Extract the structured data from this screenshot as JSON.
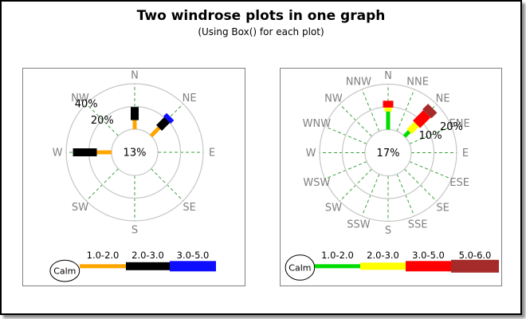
{
  "header": {
    "title": "Two windrose plots in one graph",
    "subtitle": "(Using Box() for each plot)"
  },
  "chart_data": [
    {
      "type": "windrose",
      "center_label": "13%",
      "calm_pct": 13,
      "max_pct": 40,
      "ring_labels": [
        {
          "text": "20%",
          "pct": 20,
          "angle": 315
        },
        {
          "text": "40%",
          "pct": 40,
          "angle": 315
        }
      ],
      "directions": [
        "N",
        "NE",
        "E",
        "SE",
        "S",
        "SW",
        "W",
        "NW"
      ],
      "bins": [
        {
          "label": "1.0-2.0",
          "color": "#FFA500"
        },
        {
          "label": "2.0-3.0",
          "color": "#000000"
        },
        {
          "label": "3.0-5.0",
          "color": "#0D0DFF"
        }
      ],
      "bars": [
        {
          "dir": "N",
          "segments_pct": [
            8,
            11.5,
            0
          ]
        },
        {
          "dir": "NE",
          "segments_pct": [
            10,
            10,
            4
          ]
        },
        {
          "dir": "W",
          "segments_pct": [
            13,
            21,
            0
          ]
        }
      ],
      "calm_label": "Calm"
    },
    {
      "type": "windrose",
      "center_label": "17%",
      "calm_pct": 17,
      "max_pct": 20,
      "ring_labels": [
        {
          "text": "10%",
          "pct": 10,
          "angle": 67.5
        },
        {
          "text": "20%",
          "pct": 20,
          "angle": 67.5
        }
      ],
      "directions": [
        "N",
        "NNE",
        "NE",
        "ENE",
        "E",
        "ESE",
        "SE",
        "SSE",
        "S",
        "SSW",
        "SW",
        "WSW",
        "W",
        "WNW",
        "NW",
        "NNW"
      ],
      "bins": [
        {
          "label": "1.0-2.0",
          "color": "#00DD00"
        },
        {
          "label": "2.0-3.0",
          "color": "#FFFF00"
        },
        {
          "label": "3.0-5.0",
          "color": "#FF0000"
        },
        {
          "label": "5.0-6.0",
          "color": "#A52A2A"
        }
      ],
      "bars": [
        {
          "dir": "N",
          "segments_pct": [
            8,
            1.7,
            3,
            0
          ]
        },
        {
          "dir": "NE",
          "segments_pct": [
            3,
            4.5,
            6.5,
            3.5
          ]
        }
      ],
      "calm_label": "Calm"
    }
  ],
  "colors": {
    "ring": "#C6C6C6",
    "radial_dash": "#3FA03F",
    "direction_label": "#808080",
    "ring_label": "#000000",
    "panel_border": "#808080"
  }
}
